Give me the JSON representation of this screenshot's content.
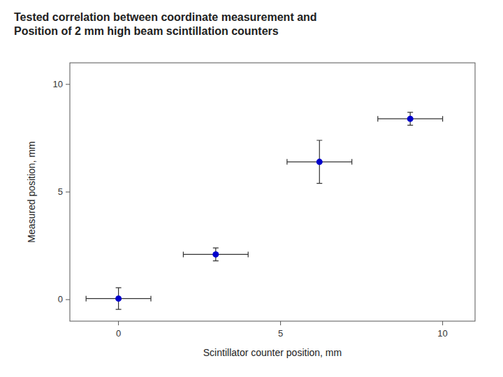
{
  "chart_data": {
    "type": "scatter",
    "title": "Tested correlation between coordinate measurement and\nPosition of 2 mm high beam scintillation counters",
    "x_label": "Scintillator counter position, mm",
    "y_label": "Measured position, mm",
    "x": [
      0.0,
      3.0,
      6.2,
      9.0
    ],
    "values": [
      0.05,
      2.1,
      6.4,
      8.4
    ],
    "xerr": [
      1.0,
      1.0,
      1.0,
      1.0
    ],
    "yerr": [
      0.5,
      0.3,
      1.0,
      0.3
    ],
    "xlim": [
      -1.5,
      11
    ],
    "ylim": [
      -1.0,
      11
    ],
    "xticks": [
      0,
      5,
      10
    ],
    "yticks": [
      0,
      5,
      10
    ],
    "color": "#0000CC",
    "marker": "circle",
    "grid": false
  }
}
